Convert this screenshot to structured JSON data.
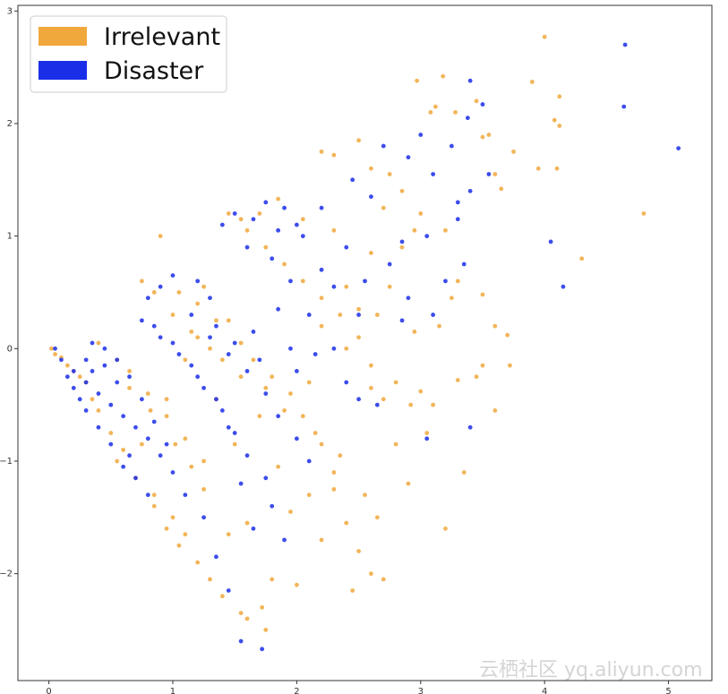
{
  "chart_data": {
    "type": "scatter",
    "title": "",
    "xlabel": "",
    "ylabel": "",
    "xlim": [
      -0.25,
      5.35
    ],
    "ylim": [
      -2.95,
      3.05
    ],
    "xticks": [
      0,
      1,
      2,
      3,
      4,
      5
    ],
    "xtick_labels": [
      "0",
      "1",
      "2",
      "3",
      "4",
      "5"
    ],
    "yticks": [
      -2,
      -1,
      0,
      1,
      2,
      3
    ],
    "ytick_labels": [
      "−2",
      "−1",
      "0",
      "1",
      "2",
      "3"
    ],
    "grid": false,
    "legend_position": "top-left",
    "legend": [
      {
        "label": "Irrelevant",
        "color": "#f0a83c"
      },
      {
        "label": "Disaster",
        "color": "#1a2ee8"
      }
    ],
    "series": [
      {
        "name": "Irrelevant",
        "color": "#f0a83c",
        "points": [
          [
            4.0,
            2.77
          ],
          [
            3.18,
            2.42
          ],
          [
            2.97,
            2.38
          ],
          [
            3.9,
            2.37
          ],
          [
            4.12,
            2.24
          ],
          [
            3.12,
            2.15
          ],
          [
            3.08,
            2.1
          ],
          [
            3.45,
            2.2
          ],
          [
            3.28,
            2.1
          ],
          [
            4.08,
            2.03
          ],
          [
            4.12,
            1.98
          ],
          [
            3.5,
            1.88
          ],
          [
            3.55,
            1.9
          ],
          [
            2.5,
            1.85
          ],
          [
            2.3,
            1.72
          ],
          [
            2.2,
            1.75
          ],
          [
            3.6,
            1.55
          ],
          [
            3.75,
            1.75
          ],
          [
            3.95,
            1.6
          ],
          [
            4.1,
            1.6
          ],
          [
            3.65,
            1.42
          ],
          [
            4.8,
            1.2
          ],
          [
            2.75,
            1.55
          ],
          [
            2.7,
            1.25
          ],
          [
            2.95,
            1.05
          ],
          [
            3.3,
            0.6
          ],
          [
            3.5,
            0.48
          ],
          [
            3.6,
            0.2
          ],
          [
            3.7,
            0.12
          ],
          [
            4.3,
            0.8
          ],
          [
            3.2,
            1.05
          ],
          [
            3.25,
            0.45
          ],
          [
            3.15,
            0.2
          ],
          [
            3.5,
            -0.15
          ],
          [
            3.6,
            -0.55
          ],
          [
            3.45,
            -0.25
          ],
          [
            3.72,
            -0.15
          ],
          [
            3.3,
            -0.28
          ],
          [
            3.0,
            -0.38
          ],
          [
            3.1,
            -0.5
          ],
          [
            3.35,
            -1.1
          ],
          [
            3.2,
            -1.6
          ],
          [
            2.92,
            -0.5
          ],
          [
            3.05,
            -0.75
          ],
          [
            2.8,
            -0.3
          ],
          [
            2.6,
            -0.35
          ],
          [
            2.55,
            -1.3
          ],
          [
            2.65,
            -1.5
          ],
          [
            2.4,
            -1.55
          ],
          [
            2.5,
            -1.8
          ],
          [
            2.45,
            -2.15
          ],
          [
            2.6,
            -2.0
          ],
          [
            2.7,
            -2.05
          ],
          [
            2.3,
            -1.1
          ],
          [
            2.1,
            -1.3
          ],
          [
            1.95,
            -1.45
          ],
          [
            1.8,
            -2.05
          ],
          [
            1.6,
            -2.4
          ],
          [
            1.55,
            -2.35
          ],
          [
            1.4,
            -2.2
          ],
          [
            1.3,
            -2.05
          ],
          [
            1.2,
            -1.9
          ],
          [
            1.05,
            -1.75
          ],
          [
            0.95,
            -1.6
          ],
          [
            0.85,
            -1.4
          ],
          [
            1.75,
            -2.5
          ],
          [
            1.72,
            -2.3
          ],
          [
            2.0,
            -2.1
          ],
          [
            2.2,
            -1.7
          ],
          [
            2.35,
            -0.95
          ],
          [
            2.15,
            -0.75
          ],
          [
            1.85,
            -1.05
          ],
          [
            1.6,
            -1.55
          ],
          [
            1.45,
            -1.65
          ],
          [
            0.9,
            1.0
          ],
          [
            2.4,
            0.0
          ],
          [
            2.5,
            0.35
          ],
          [
            2.2,
            0.2
          ],
          [
            2.1,
            -0.3
          ],
          [
            1.9,
            -0.55
          ],
          [
            1.7,
            -0.6
          ],
          [
            1.5,
            -0.85
          ],
          [
            1.25,
            -1.25
          ],
          [
            1.35,
            -0.45
          ],
          [
            1.55,
            -0.25
          ],
          [
            1.75,
            -0.35
          ],
          [
            1.2,
            0.1
          ],
          [
            1.45,
            0.25
          ],
          [
            2.3,
            1.05
          ],
          [
            2.05,
            1.15
          ],
          [
            1.85,
            1.33
          ],
          [
            1.7,
            1.2
          ],
          [
            1.55,
            1.15
          ],
          [
            2.6,
            0.85
          ],
          [
            2.85,
            0.9
          ],
          [
            2.4,
            0.55
          ],
          [
            2.65,
            0.3
          ],
          [
            2.75,
            0.55
          ],
          [
            1.25,
            0.55
          ],
          [
            1.1,
            -0.1
          ],
          [
            0.95,
            -0.45
          ],
          [
            0.75,
            -0.85
          ],
          [
            0.6,
            -0.9
          ],
          [
            0.5,
            -0.75
          ],
          [
            0.4,
            -0.55
          ],
          [
            0.35,
            -0.45
          ],
          [
            0.3,
            -0.3
          ],
          [
            0.25,
            -0.25
          ],
          [
            0.2,
            -0.2
          ],
          [
            0.15,
            -0.15
          ],
          [
            0.1,
            -0.08
          ],
          [
            0.05,
            -0.05
          ],
          [
            0.02,
            0.0
          ],
          [
            0.65,
            -0.35
          ],
          [
            0.82,
            -0.55
          ],
          [
            1.02,
            -0.85
          ],
          [
            1.15,
            -1.05
          ],
          [
            0.55,
            -1.0
          ],
          [
            0.7,
            -1.15
          ],
          [
            0.85,
            -1.3
          ],
          [
            1.0,
            -1.5
          ],
          [
            1.1,
            -1.65
          ],
          [
            0.75,
            0.6
          ],
          [
            0.85,
            0.5
          ],
          [
            1.0,
            0.3
          ],
          [
            1.15,
            0.15
          ],
          [
            1.3,
            0.0
          ],
          [
            1.4,
            -0.1
          ],
          [
            1.05,
            0.5
          ],
          [
            1.2,
            0.4
          ],
          [
            1.35,
            0.25
          ],
          [
            1.55,
            0.05
          ],
          [
            1.65,
            -0.1
          ],
          [
            1.8,
            -0.25
          ],
          [
            1.95,
            -0.4
          ],
          [
            2.05,
            -0.6
          ],
          [
            2.2,
            -0.85
          ],
          [
            2.3,
            -1.25
          ],
          [
            1.45,
            1.2
          ],
          [
            1.6,
            1.05
          ],
          [
            1.75,
            0.9
          ],
          [
            1.9,
            0.75
          ],
          [
            2.05,
            0.6
          ],
          [
            2.2,
            0.45
          ],
          [
            2.35,
            0.3
          ],
          [
            2.5,
            0.1
          ],
          [
            2.6,
            -0.15
          ],
          [
            2.7,
            -0.45
          ],
          [
            2.8,
            -0.85
          ],
          [
            2.9,
            -1.2
          ],
          [
            0.4,
            0.05
          ],
          [
            0.55,
            -0.1
          ],
          [
            0.65,
            -0.2
          ],
          [
            0.8,
            -0.4
          ],
          [
            0.95,
            -0.6
          ],
          [
            1.1,
            -0.8
          ],
          [
            1.25,
            -1.0
          ],
          [
            2.6,
            1.6
          ],
          [
            2.85,
            1.4
          ],
          [
            3.0,
            1.2
          ],
          [
            2.95,
            0.15
          ]
        ]
      },
      {
        "name": "Disaster",
        "color": "#1a2ee8",
        "points": [
          [
            4.65,
            2.7
          ],
          [
            4.64,
            2.15
          ],
          [
            5.08,
            1.78
          ],
          [
            3.4,
            2.38
          ],
          [
            3.5,
            2.17
          ],
          [
            3.38,
            2.05
          ],
          [
            3.25,
            1.8
          ],
          [
            3.0,
            1.9
          ],
          [
            2.9,
            1.7
          ],
          [
            2.7,
            1.8
          ],
          [
            2.45,
            1.5
          ],
          [
            2.6,
            1.35
          ],
          [
            3.1,
            1.55
          ],
          [
            3.4,
            1.4
          ],
          [
            3.3,
            1.15
          ],
          [
            3.05,
            1.0
          ],
          [
            2.85,
            0.95
          ],
          [
            4.05,
            0.95
          ],
          [
            4.15,
            0.55
          ],
          [
            2.55,
            0.6
          ],
          [
            2.5,
            0.3
          ],
          [
            2.3,
            0.55
          ],
          [
            2.1,
            0.3
          ],
          [
            2.2,
            0.7
          ],
          [
            2.4,
            0.9
          ],
          [
            2.0,
            1.1
          ],
          [
            1.9,
            1.25
          ],
          [
            1.75,
            1.3
          ],
          [
            1.65,
            1.15
          ],
          [
            1.5,
            1.2
          ],
          [
            1.6,
            0.9
          ],
          [
            1.8,
            0.8
          ],
          [
            1.95,
            0.6
          ],
          [
            1.85,
            0.35
          ],
          [
            1.65,
            0.15
          ],
          [
            1.7,
            -0.1
          ],
          [
            1.5,
            0.05
          ],
          [
            1.35,
            0.2
          ],
          [
            1.3,
            0.45
          ],
          [
            1.2,
            0.6
          ],
          [
            1.0,
            0.65
          ],
          [
            0.9,
            0.55
          ],
          [
            0.8,
            0.45
          ],
          [
            0.85,
            0.2
          ],
          [
            1.0,
            0.05
          ],
          [
            1.15,
            -0.15
          ],
          [
            1.25,
            -0.35
          ],
          [
            1.4,
            -0.55
          ],
          [
            1.5,
            -0.75
          ],
          [
            1.6,
            -0.95
          ],
          [
            1.75,
            -1.15
          ],
          [
            1.8,
            -1.4
          ],
          [
            1.9,
            -1.7
          ],
          [
            1.55,
            -2.6
          ],
          [
            1.72,
            -2.67
          ],
          [
            1.45,
            -2.15
          ],
          [
            1.35,
            -1.85
          ],
          [
            1.25,
            -1.5
          ],
          [
            1.1,
            -1.3
          ],
          [
            1.0,
            -1.1
          ],
          [
            0.9,
            -0.95
          ],
          [
            0.8,
            -0.8
          ],
          [
            0.7,
            -0.7
          ],
          [
            0.6,
            -0.6
          ],
          [
            0.5,
            -0.5
          ],
          [
            0.4,
            -0.4
          ],
          [
            0.3,
            -0.3
          ],
          [
            0.2,
            -0.2
          ],
          [
            0.1,
            -0.1
          ],
          [
            0.05,
            0.0
          ],
          [
            0.35,
            0.05
          ],
          [
            0.45,
            0.0
          ],
          [
            0.55,
            -0.1
          ],
          [
            0.65,
            -0.25
          ],
          [
            0.75,
            -0.45
          ],
          [
            0.85,
            -0.65
          ],
          [
            0.95,
            -0.85
          ],
          [
            0.6,
            -1.05
          ],
          [
            0.7,
            -1.15
          ],
          [
            0.8,
            -1.3
          ],
          [
            0.65,
            -0.95
          ],
          [
            0.5,
            -0.85
          ],
          [
            0.4,
            -0.7
          ],
          [
            0.3,
            -0.55
          ],
          [
            0.25,
            -0.45
          ],
          [
            0.2,
            -0.35
          ],
          [
            0.15,
            -0.25
          ],
          [
            2.3,
            0.0
          ],
          [
            2.4,
            -0.3
          ],
          [
            2.5,
            -0.45
          ],
          [
            2.65,
            -0.5
          ],
          [
            2.0,
            -0.2
          ],
          [
            1.95,
            0.0
          ],
          [
            2.15,
            -0.05
          ],
          [
            3.05,
            -0.8
          ],
          [
            3.4,
            -0.7
          ],
          [
            2.85,
            0.25
          ],
          [
            2.75,
            0.75
          ],
          [
            2.9,
            0.45
          ],
          [
            3.1,
            0.3
          ],
          [
            3.2,
            0.6
          ],
          [
            3.35,
            0.75
          ],
          [
            2.2,
            1.25
          ],
          [
            2.05,
            1.0
          ],
          [
            1.85,
            1.05
          ],
          [
            1.4,
            1.1
          ],
          [
            1.15,
            0.3
          ],
          [
            1.3,
            0.1
          ],
          [
            1.45,
            -0.05
          ],
          [
            1.6,
            -0.2
          ],
          [
            1.75,
            -0.4
          ],
          [
            1.85,
            -0.6
          ],
          [
            2.0,
            -0.8
          ],
          [
            2.1,
            -1.0
          ],
          [
            0.75,
            0.25
          ],
          [
            0.9,
            0.1
          ],
          [
            1.05,
            -0.05
          ],
          [
            1.2,
            -0.25
          ],
          [
            1.35,
            -0.45
          ],
          [
            1.45,
            -0.7
          ],
          [
            1.55,
            -1.2
          ],
          [
            1.65,
            -1.6
          ],
          [
            0.45,
            -0.15
          ],
          [
            0.55,
            -0.3
          ],
          [
            0.3,
            -0.1
          ],
          [
            0.35,
            -0.2
          ],
          [
            3.55,
            1.55
          ],
          [
            3.3,
            1.3
          ]
        ]
      }
    ]
  },
  "watermark": "云栖社区 yq.aliyun.com"
}
